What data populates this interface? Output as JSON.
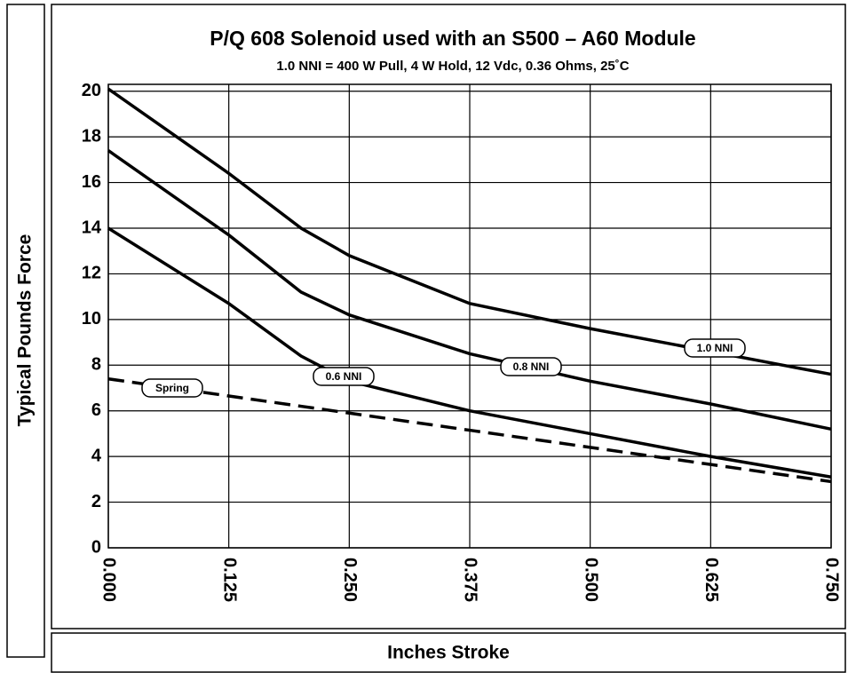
{
  "chart_data": {
    "type": "line",
    "title": "P/Q 608 Solenoid used with an S500 – A60 Module",
    "subtitle": "1.0 NNI = 400 W Pull, 4 W Hold, 12 Vdc, 0.36 Ohms, 25˚C",
    "y_label": "Typical Pounds Force",
    "x_label": "Inches Stroke",
    "x": [
      0,
      0.125,
      0.2,
      0.25,
      0.375,
      0.5,
      0.625,
      0.75
    ],
    "series": [
      {
        "name": "1.0 NNI",
        "color": "#000000",
        "dashed": false,
        "values": [
          20.1,
          16.4,
          14.0,
          12.8,
          10.7,
          9.6,
          8.6,
          7.6
        ]
      },
      {
        "name": "0.8 NNI",
        "color": "#000000",
        "dashed": false,
        "values": [
          17.4,
          13.7,
          11.2,
          10.2,
          8.5,
          7.3,
          6.3,
          5.2
        ]
      },
      {
        "name": "0.6 NNI",
        "color": "#000000",
        "dashed": false,
        "values": [
          14.0,
          10.7,
          8.4,
          7.3,
          6.0,
          5.0,
          4.0,
          3.1
        ]
      },
      {
        "name": "Spring",
        "color": "#000000",
        "dashed": true,
        "values": [
          7.4,
          6.65,
          6.2,
          5.9,
          5.15,
          4.4,
          3.65,
          2.9
        ]
      }
    ],
    "xlim": [
      0,
      0.75
    ],
    "ylim": [
      0,
      20.3
    ],
    "xticks": [
      {
        "value": 0,
        "label": "0.000"
      },
      {
        "value": 0.125,
        "label": "0.125"
      },
      {
        "value": 0.25,
        "label": "0.250"
      },
      {
        "value": 0.375,
        "label": "0.375"
      },
      {
        "value": 0.5,
        "label": "0.500"
      },
      {
        "value": 0.625,
        "label": "0.625"
      },
      {
        "value": 0.75,
        "label": "0.750"
      }
    ],
    "yticks": [
      0,
      2,
      4,
      6,
      8,
      10,
      12,
      14,
      16,
      18,
      20
    ],
    "grid": true
  }
}
